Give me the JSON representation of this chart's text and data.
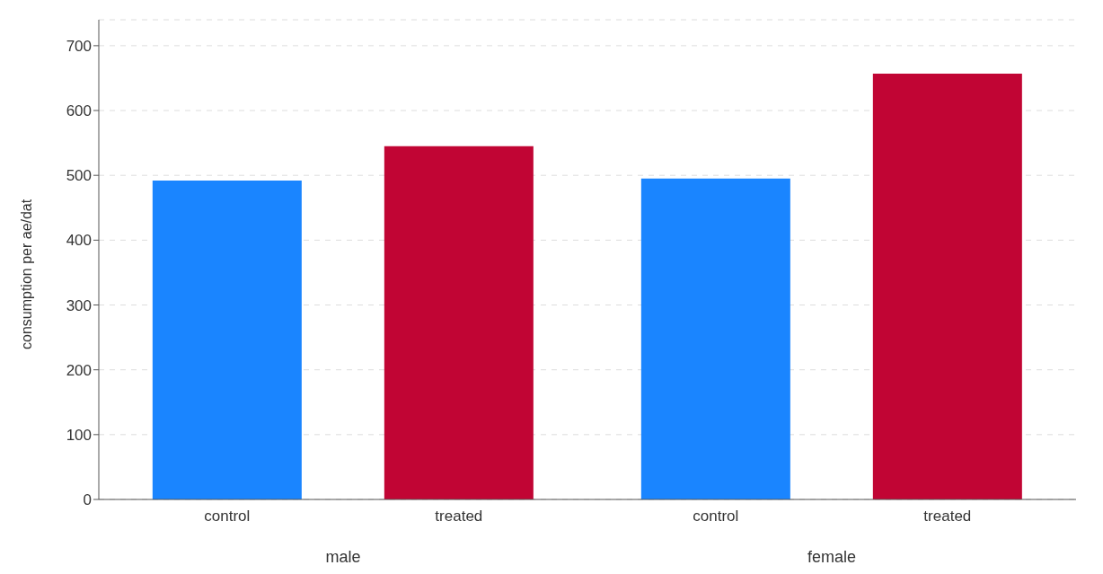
{
  "chart_data": {
    "type": "bar",
    "ylabel": "consumption per ae/dat",
    "categories": [
      "male",
      "female"
    ],
    "series": [
      {
        "name": "control",
        "color": "#1a85ff",
        "values": [
          492,
          495
        ]
      },
      {
        "name": "treated",
        "color": "#c10534",
        "values": [
          545,
          657
        ]
      }
    ],
    "ylim": [
      0,
      740
    ],
    "yticks": [
      0,
      100,
      200,
      300,
      400,
      500,
      600,
      700
    ],
    "grid": "y",
    "legend": false
  }
}
